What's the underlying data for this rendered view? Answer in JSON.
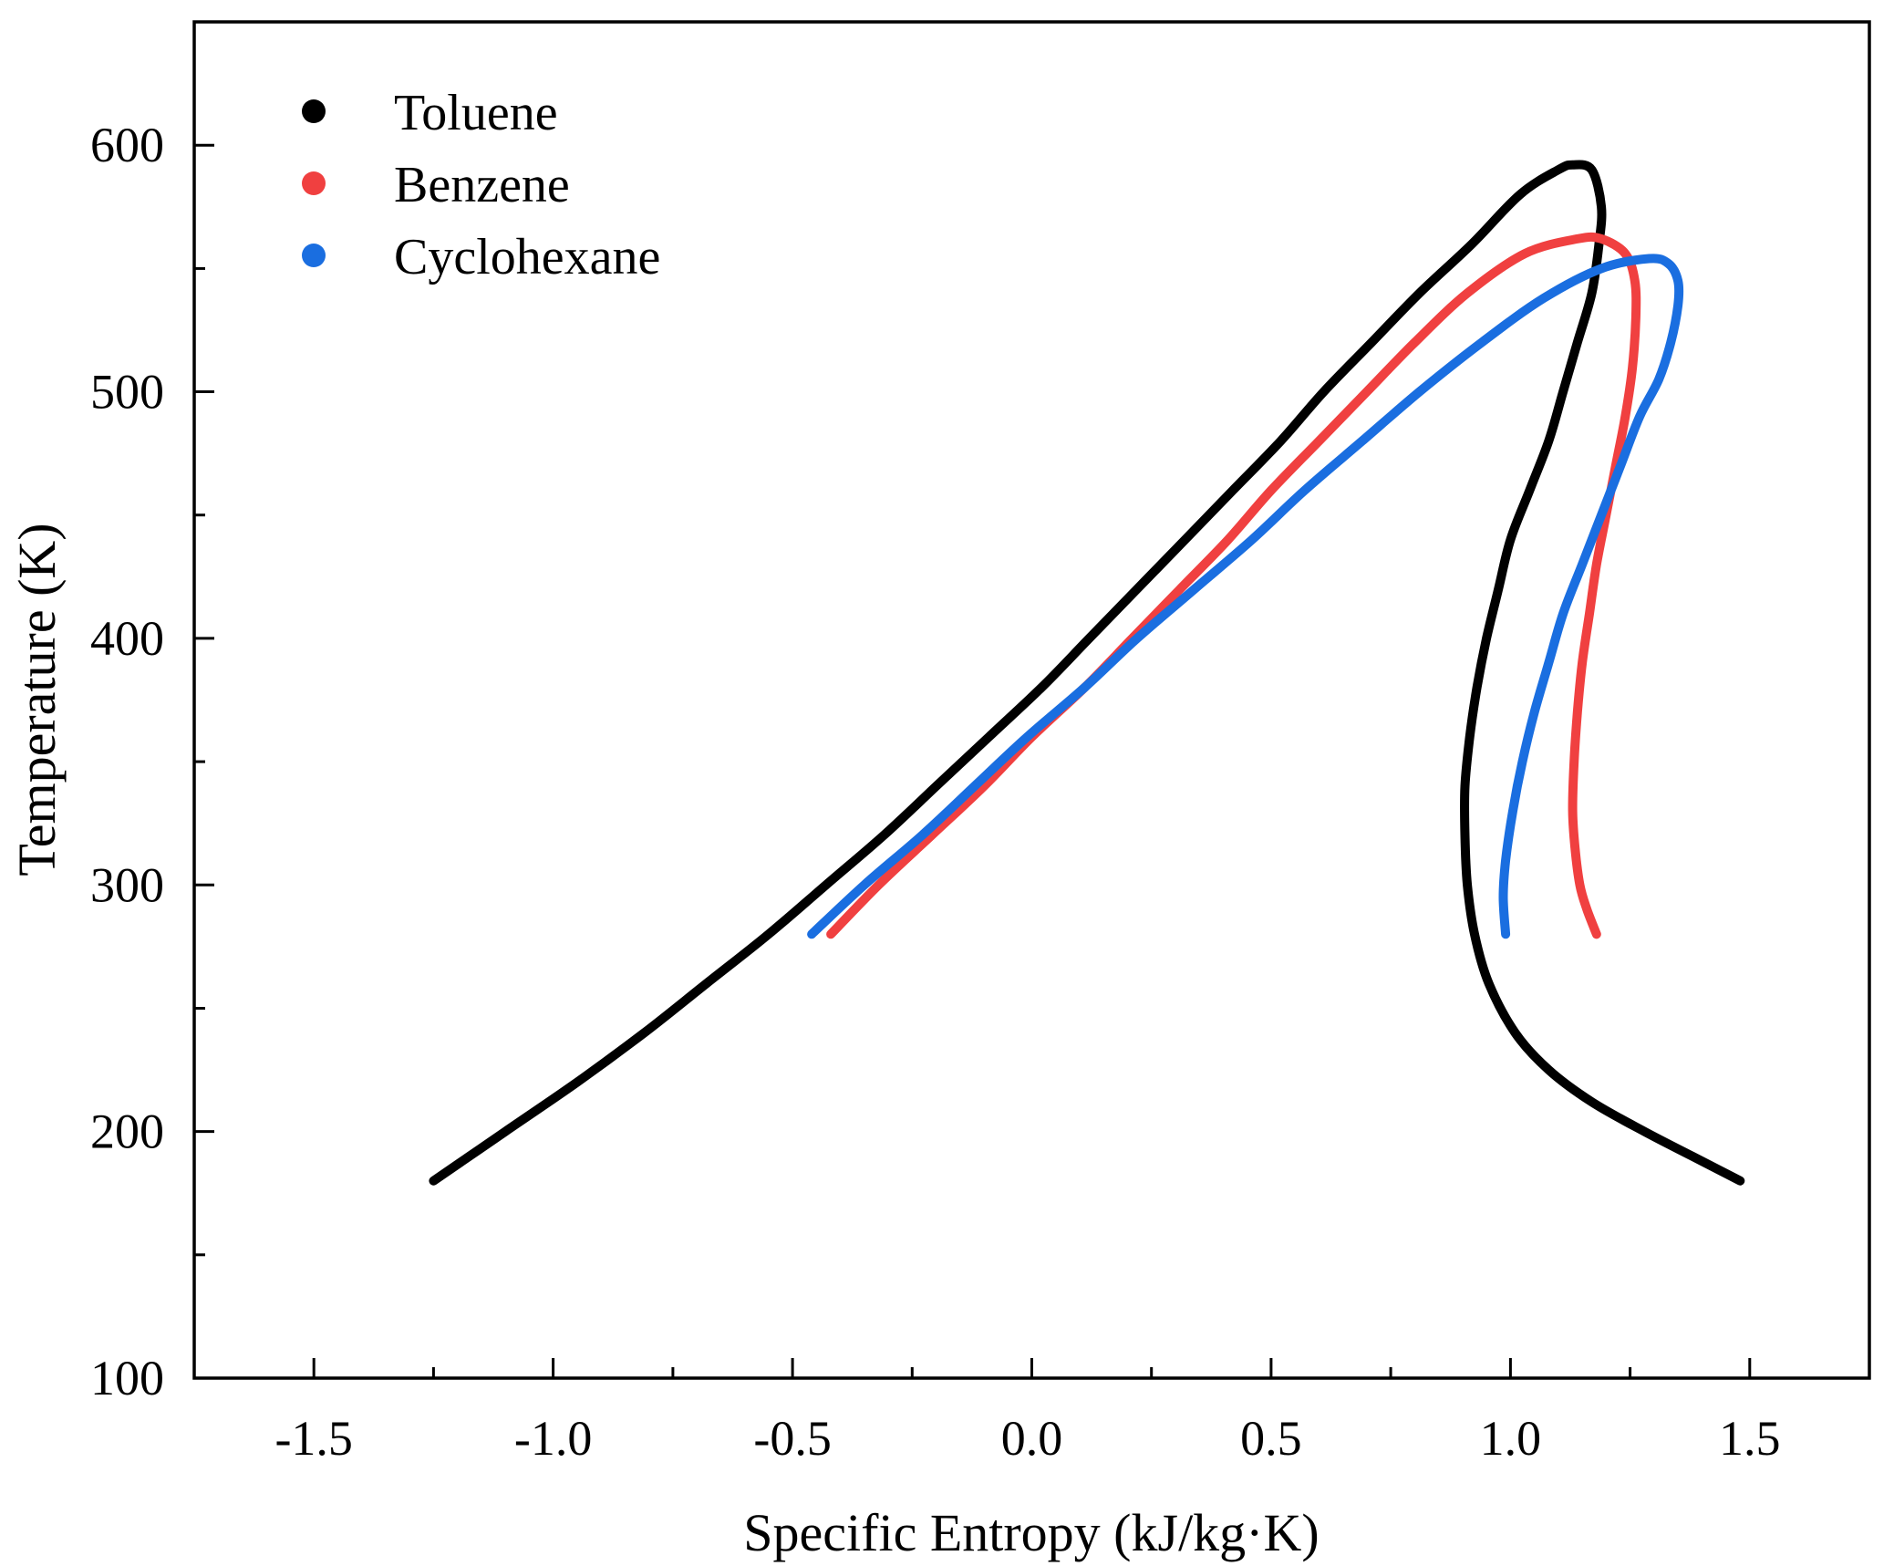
{
  "chart_data": {
    "type": "line",
    "title": "",
    "xlabel": "Specific Entropy (kJ/kg·K)",
    "ylabel": "Temperature (K)",
    "xlim": [
      -1.75,
      1.75
    ],
    "ylim": [
      100,
      650
    ],
    "xticks": [
      -1.5,
      -1.0,
      -0.5,
      0.0,
      0.5,
      1.0,
      1.5
    ],
    "xtick_labels": [
      "-1.5",
      "-1.0",
      "-0.5",
      "0.0",
      "0.5",
      "1.0",
      "1.5"
    ],
    "yticks": [
      100,
      200,
      300,
      400,
      500,
      600
    ],
    "ytick_labels": [
      "100",
      "200",
      "300",
      "400",
      "500",
      "600"
    ],
    "grid": false,
    "legend_position": "top-left",
    "series": [
      {
        "name": "Toluene",
        "color": "#000000",
        "points": [
          [
            -1.25,
            180
          ],
          [
            -1.1,
            200
          ],
          [
            -0.95,
            220
          ],
          [
            -0.81,
            240
          ],
          [
            -0.68,
            260
          ],
          [
            -0.55,
            280
          ],
          [
            -0.43,
            300
          ],
          [
            -0.31,
            320
          ],
          [
            -0.2,
            340
          ],
          [
            -0.09,
            360
          ],
          [
            0.02,
            380
          ],
          [
            0.12,
            400
          ],
          [
            0.22,
            420
          ],
          [
            0.32,
            440
          ],
          [
            0.42,
            460
          ],
          [
            0.52,
            480
          ],
          [
            0.61,
            500
          ],
          [
            0.71,
            520
          ],
          [
            0.81,
            540
          ],
          [
            0.92,
            560
          ],
          [
            1.02,
            580
          ],
          [
            1.1,
            590
          ],
          [
            1.13,
            592
          ],
          [
            1.17,
            590
          ],
          [
            1.19,
            575
          ],
          [
            1.185,
            560
          ],
          [
            1.17,
            540
          ],
          [
            1.14,
            520
          ],
          [
            1.11,
            500
          ],
          [
            1.08,
            480
          ],
          [
            1.04,
            460
          ],
          [
            1.0,
            440
          ],
          [
            0.975,
            420
          ],
          [
            0.95,
            400
          ],
          [
            0.93,
            380
          ],
          [
            0.915,
            360
          ],
          [
            0.905,
            340
          ],
          [
            0.905,
            320
          ],
          [
            0.91,
            300
          ],
          [
            0.925,
            280
          ],
          [
            0.955,
            260
          ],
          [
            1.01,
            240
          ],
          [
            1.08,
            225
          ],
          [
            1.17,
            212
          ],
          [
            1.28,
            200
          ],
          [
            1.38,
            190
          ],
          [
            1.48,
            180
          ]
        ]
      },
      {
        "name": "Benzene",
        "color": "#f04040",
        "points": [
          [
            -0.42,
            280
          ],
          [
            -0.32,
            300
          ],
          [
            -0.21,
            320
          ],
          [
            -0.1,
            340
          ],
          [
            0.0,
            360
          ],
          [
            0.11,
            380
          ],
          [
            0.21,
            400
          ],
          [
            0.31,
            420
          ],
          [
            0.41,
            440
          ],
          [
            0.5,
            460
          ],
          [
            0.6,
            480
          ],
          [
            0.7,
            500
          ],
          [
            0.8,
            520
          ],
          [
            0.91,
            540
          ],
          [
            1.03,
            556
          ],
          [
            1.14,
            562
          ],
          [
            1.19,
            562
          ],
          [
            1.24,
            556
          ],
          [
            1.26,
            545
          ],
          [
            1.262,
            530
          ],
          [
            1.255,
            510
          ],
          [
            1.24,
            490
          ],
          [
            1.22,
            470
          ],
          [
            1.2,
            450
          ],
          [
            1.18,
            430
          ],
          [
            1.165,
            410
          ],
          [
            1.15,
            390
          ],
          [
            1.14,
            370
          ],
          [
            1.133,
            350
          ],
          [
            1.13,
            330
          ],
          [
            1.135,
            315
          ],
          [
            1.145,
            300
          ],
          [
            1.16,
            290
          ],
          [
            1.18,
            280
          ]
        ]
      },
      {
        "name": "Cyclohexane",
        "color": "#1a6ee0",
        "points": [
          [
            -0.46,
            280
          ],
          [
            -0.35,
            300
          ],
          [
            -0.23,
            320
          ],
          [
            -0.12,
            340
          ],
          [
            -0.01,
            360
          ],
          [
            0.11,
            380
          ],
          [
            0.22,
            400
          ],
          [
            0.34,
            420
          ],
          [
            0.46,
            440
          ],
          [
            0.57,
            460
          ],
          [
            0.69,
            480
          ],
          [
            0.81,
            500
          ],
          [
            0.94,
            520
          ],
          [
            1.07,
            538
          ],
          [
            1.19,
            550
          ],
          [
            1.29,
            554
          ],
          [
            1.33,
            552
          ],
          [
            1.35,
            545
          ],
          [
            1.35,
            535
          ],
          [
            1.335,
            520
          ],
          [
            1.31,
            505
          ],
          [
            1.27,
            490
          ],
          [
            1.23,
            470
          ],
          [
            1.19,
            450
          ],
          [
            1.15,
            430
          ],
          [
            1.11,
            410
          ],
          [
            1.08,
            390
          ],
          [
            1.05,
            370
          ],
          [
            1.025,
            350
          ],
          [
            1.005,
            330
          ],
          [
            0.99,
            310
          ],
          [
            0.985,
            295
          ],
          [
            0.99,
            280
          ]
        ]
      }
    ]
  }
}
